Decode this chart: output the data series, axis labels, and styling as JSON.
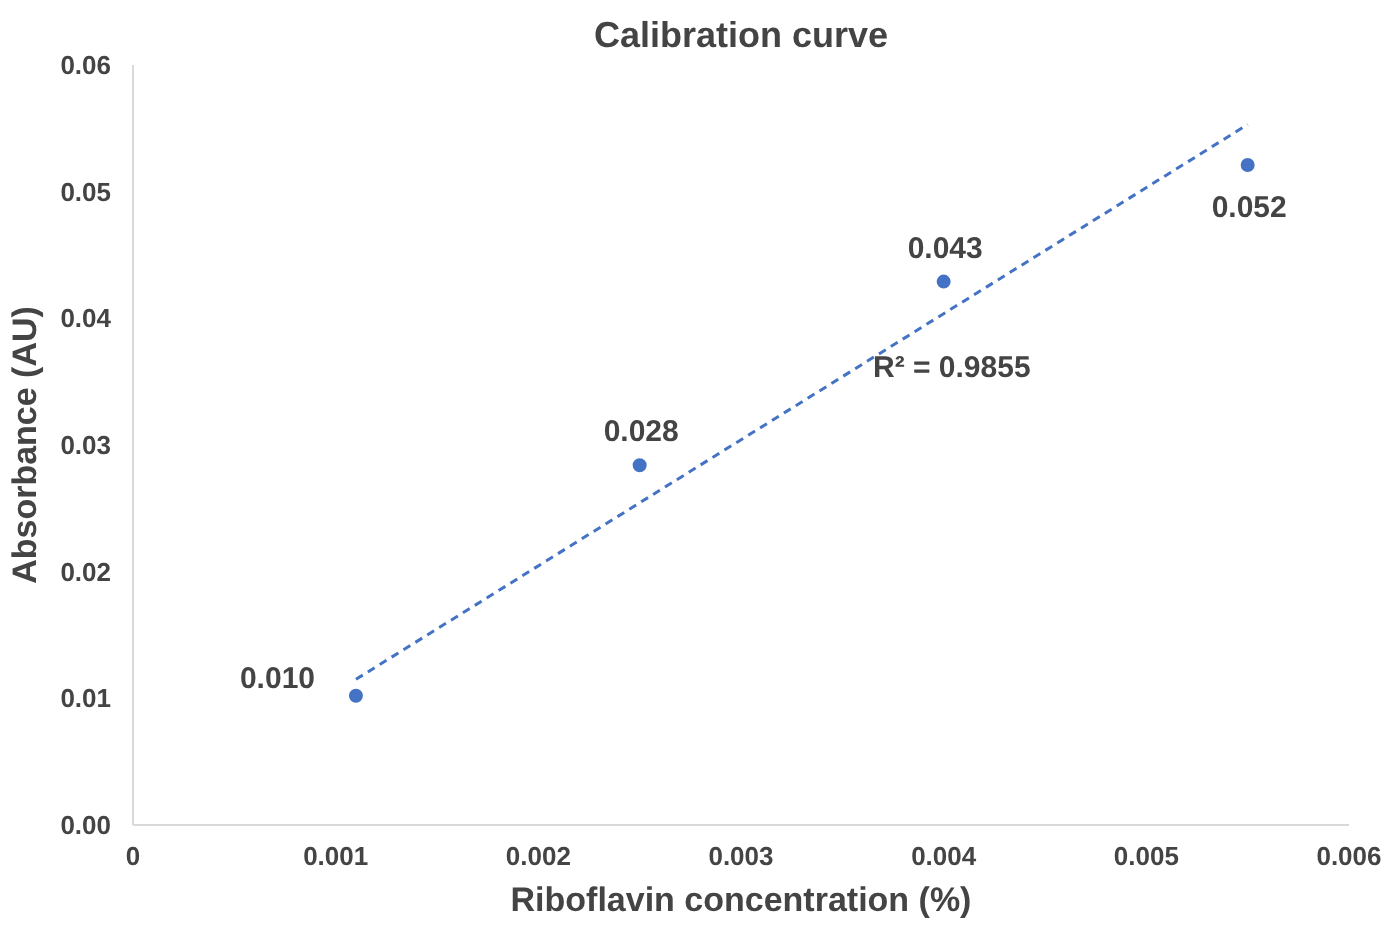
{
  "chart_data": {
    "type": "scatter",
    "title": "Calibration curve",
    "xlabel": "Riboflavin concentration (%)",
    "ylabel": "Absorbance (AU)",
    "x": [
      0.0011,
      0.0025,
      0.004,
      0.0055
    ],
    "series": [
      {
        "color": "#4472c4",
        "values": [
          0.0102,
          0.0284,
          0.0429,
          0.0521
        ],
        "value_labels": [
          "0.010",
          "0.028",
          "0.043",
          "0.052"
        ],
        "marker": "circle"
      },
      {
        "type": "line",
        "color": "#4472c4",
        "x": [
          0.0011,
          0.0055
        ],
        "values": [
          0.0115,
          0.0553
        ],
        "line_style": "dashed",
        "marker": "none"
      }
    ],
    "annotations": [
      "R² = 0.9855"
    ],
    "xlim": [
      0,
      0.006
    ],
    "xticks": [
      0,
      {
        "value": 0.001,
        "label": "0.001"
      },
      {
        "value": 0.002,
        "label": "0.002"
      },
      {
        "value": 0.003,
        "label": "0.003"
      },
      {
        "value": 0.004,
        "label": "0.004"
      },
      {
        "value": 0.005,
        "label": "0.005"
      },
      {
        "value": 0.006,
        "label": "0.006"
      }
    ],
    "ylim": [
      0,
      0.06
    ],
    "yticks": [
      {
        "value": 0,
        "label": "0.00"
      },
      {
        "value": 0.01,
        "label": "0.01"
      },
      {
        "value": 0.02,
        "label": "0.02"
      },
      {
        "value": 0.03,
        "label": "0.03"
      },
      {
        "value": 0.04,
        "label": "0.04"
      },
      {
        "value": 0.05,
        "label": "0.05"
      },
      {
        "value": 0.06,
        "label": "0.06"
      }
    ],
    "grid": false
  }
}
